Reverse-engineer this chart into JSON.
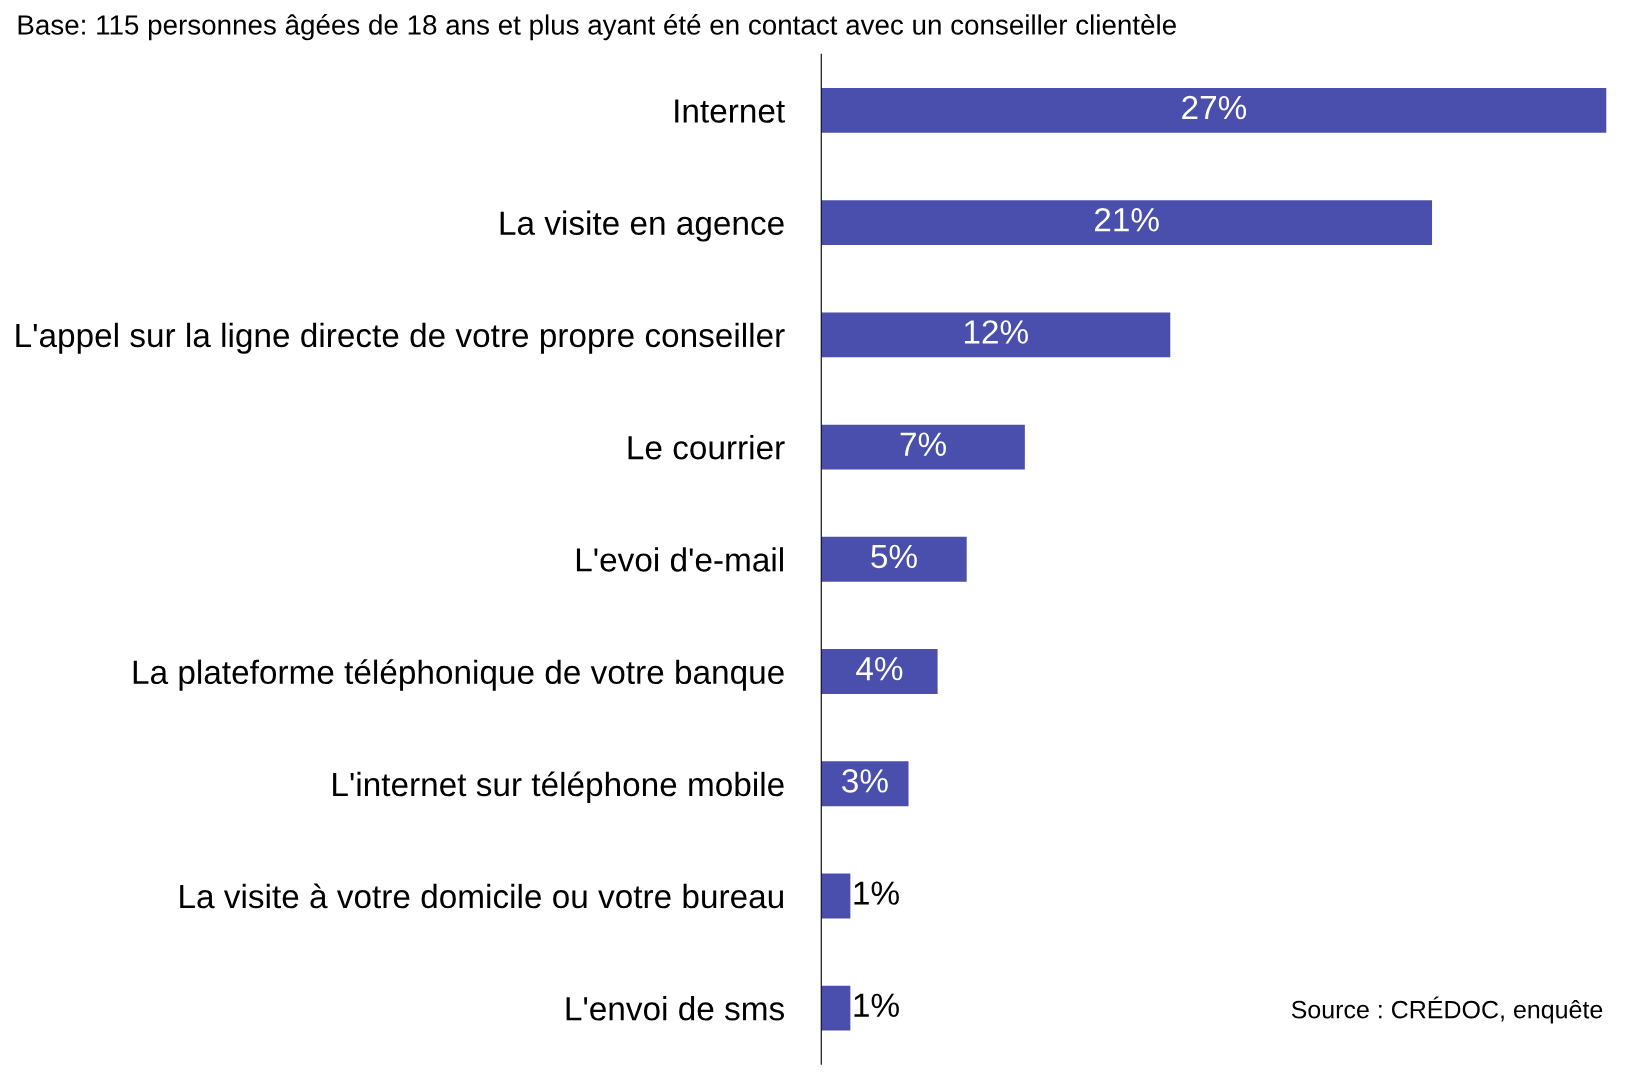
{
  "chart_data": {
    "type": "bar",
    "orientation": "horizontal",
    "subtitle": "Base: 115 personnes âgées de 18 ans et plus ayant été en contact avec un conseiller clientèle",
    "categories": [
      "Internet",
      "La visite en agence",
      "L'appel sur la ligne directe de votre propre conseiller",
      "Le courrier",
      "L'evoi d'e-mail",
      "La plateforme téléphonique de votre banque",
      "L'internet sur téléphone mobile",
      "La visite à votre domicile ou votre bureau",
      "L'envoi de sms"
    ],
    "values": [
      27,
      21,
      12,
      7,
      5,
      4,
      3,
      1,
      1
    ],
    "value_labels": [
      "27%",
      "21%",
      "12%",
      "7%",
      "5%",
      "4%",
      "3%",
      "1%",
      "1%"
    ],
    "color": "#4a4fae",
    "annotations": [
      "Source : CRÉDOC, enquête"
    ]
  }
}
